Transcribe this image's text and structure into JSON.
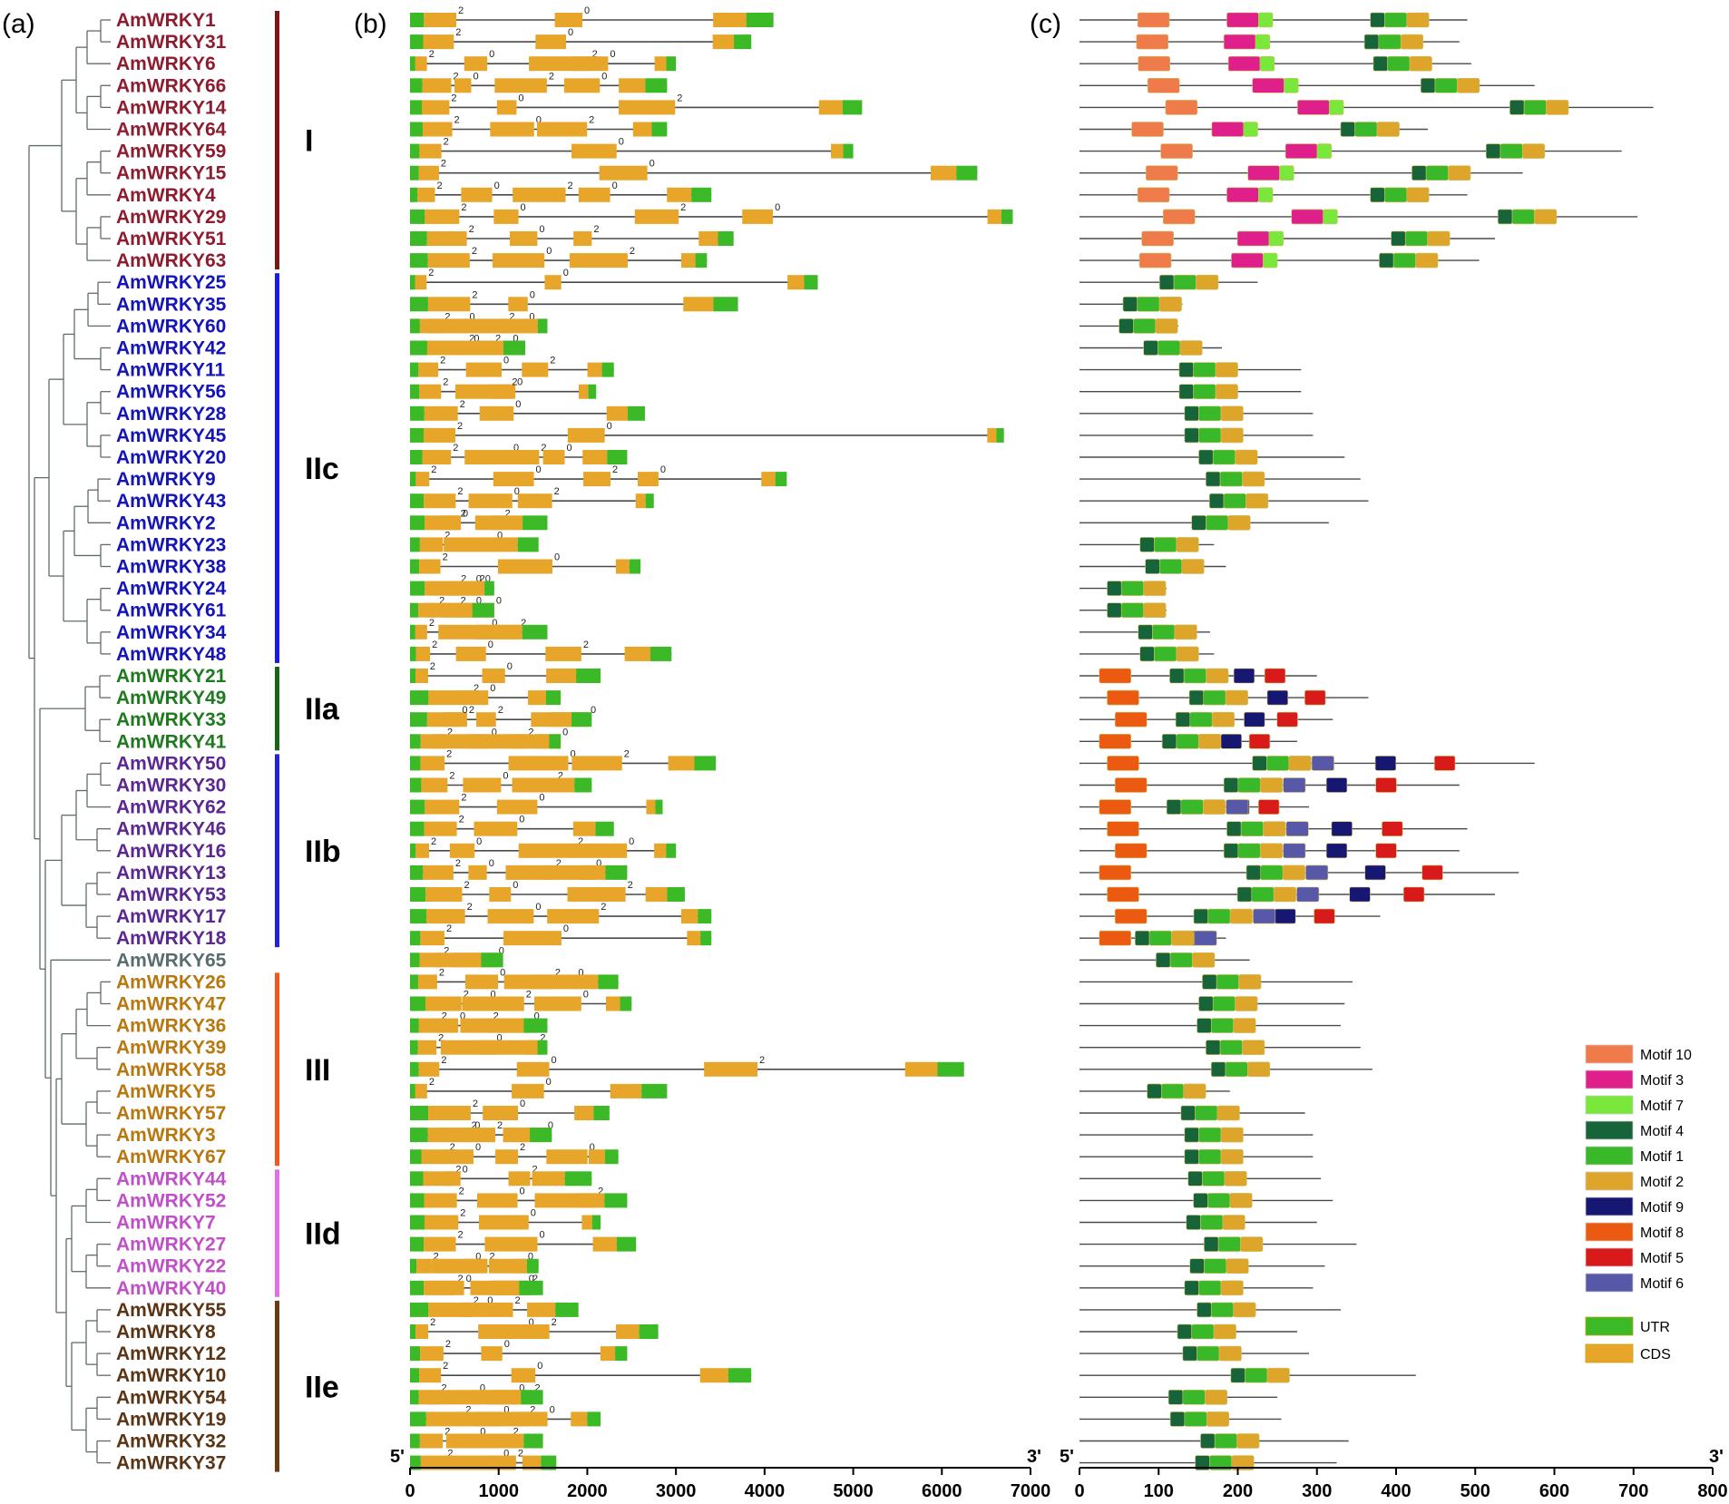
{
  "panel_labels": {
    "a": "(a)",
    "b": "(b)",
    "c": "(c)"
  },
  "colors": {
    "utr": "#3cb926",
    "cds": "#e7a62a",
    "intron": "#4a4a4a",
    "tree": "#5f6b6b",
    "I": "#8e1c30",
    "IIc": "#1414b8",
    "IIa": "#1f7a1f",
    "IIb": "#5a2890",
    "III": "#b8770f",
    "IId": "#c050c8",
    "IIe": "#5a3414",
    "ungrouped": "#5a6d6d",
    "bar_I": "#7a1818",
    "bar_IIc": "#1a1ae6",
    "bar_IIa": "#176617",
    "bar_IIb": "#2222dd",
    "bar_III": "#f2561d",
    "bar_IId": "#e070e6",
    "bar_IIe": "#6b3a14"
  },
  "groups": [
    {
      "label": "I",
      "color_key": "I",
      "bar_key": "bar_I",
      "first": 0,
      "last": 11
    },
    {
      "label": "IIc",
      "color_key": "IIc",
      "bar_key": "bar_IIc",
      "first": 12,
      "last": 29
    },
    {
      "label": "IIa",
      "color_key": "IIa",
      "bar_key": "bar_IIa",
      "first": 30,
      "last": 33
    },
    {
      "label": "IIb",
      "color_key": "IIb",
      "bar_key": "bar_IIb",
      "first": 34,
      "last": 42
    },
    {
      "label": "III",
      "color_key": "III",
      "bar_key": "bar_III",
      "first": 44,
      "last": 52
    },
    {
      "label": "IId",
      "color_key": "IId",
      "bar_key": "bar_IId",
      "first": 53,
      "last": 58
    },
    {
      "label": "IIe",
      "color_key": "IIe",
      "bar_key": "bar_IIe",
      "first": 59,
      "last": 66
    }
  ],
  "genes": [
    "AmWRKY1",
    "AmWRKY31",
    "AmWRKY6",
    "AmWRKY66",
    "AmWRKY14",
    "AmWRKY64",
    "AmWRKY59",
    "AmWRKY15",
    "AmWRKY4",
    "AmWRKY29",
    "AmWRKY51",
    "AmWRKY63",
    "AmWRKY25",
    "AmWRKY35",
    "AmWRKY60",
    "AmWRKY42",
    "AmWRKY11",
    "AmWRKY56",
    "AmWRKY28",
    "AmWRKY45",
    "AmWRKY20",
    "AmWRKY9",
    "AmWRKY43",
    "AmWRKY2",
    "AmWRKY23",
    "AmWRKY38",
    "AmWRKY24",
    "AmWRKY61",
    "AmWRKY34",
    "AmWRKY48",
    "AmWRKY21",
    "AmWRKY49",
    "AmWRKY33",
    "AmWRKY41",
    "AmWRKY50",
    "AmWRKY30",
    "AmWRKY62",
    "AmWRKY46",
    "AmWRKY16",
    "AmWRKY13",
    "AmWRKY53",
    "AmWRKY17",
    "AmWRKY18",
    "AmWRKY65",
    "AmWRKY26",
    "AmWRKY47",
    "AmWRKY36",
    "AmWRKY39",
    "AmWRKY58",
    "AmWRKY5",
    "AmWRKY57",
    "AmWRKY3",
    "AmWRKY67",
    "AmWRKY44",
    "AmWRKY52",
    "AmWRKY7",
    "AmWRKY27",
    "AmWRKY22",
    "AmWRKY40",
    "AmWRKY55",
    "AmWRKY8",
    "AmWRKY12",
    "AmWRKY10",
    "AmWRKY54",
    "AmWRKY19",
    "AmWRKY32",
    "AmWRKY37"
  ],
  "gene_group": [
    "I",
    "I",
    "I",
    "I",
    "I",
    "I",
    "I",
    "I",
    "I",
    "I",
    "I",
    "I",
    "IIc",
    "IIc",
    "IIc",
    "IIc",
    "IIc",
    "IIc",
    "IIc",
    "IIc",
    "IIc",
    "IIc",
    "IIc",
    "IIc",
    "IIc",
    "IIc",
    "IIc",
    "IIc",
    "IIc",
    "IIc",
    "IIa",
    "IIa",
    "IIa",
    "IIa",
    "IIb",
    "IIb",
    "IIb",
    "IIb",
    "IIb",
    "IIb",
    "IIb",
    "IIb",
    "IIb",
    "ungrouped",
    "III",
    "III",
    "III",
    "III",
    "III",
    "III",
    "III",
    "III",
    "III",
    "IId",
    "IId",
    "IId",
    "IId",
    "IId",
    "IId",
    "IIe",
    "IIe",
    "IIe",
    "IIe",
    "IIe",
    "IIe",
    "IIe",
    "IIe"
  ],
  "chart_data": {
    "type": "gene-structure-diagram",
    "gene_length_axis": {
      "min": 0,
      "max": 7000,
      "ticks": [
        0,
        1000,
        2000,
        3000,
        4000,
        5000,
        6000,
        7000
      ],
      "start_label": "5'",
      "end_label": "3'"
    },
    "motif_axis": {
      "min": 0,
      "max": 800,
      "ticks": [
        0,
        100,
        200,
        300,
        400,
        500,
        600,
        700,
        800
      ],
      "start_label": "5'",
      "end_label": "3'"
    },
    "gene_lengths": [
      4100,
      3850,
      3000,
      2900,
      5100,
      2900,
      5000,
      6400,
      3400,
      6800,
      3650,
      3350,
      4600,
      3700,
      1550,
      1300,
      2300,
      2100,
      2650,
      6700,
      2450,
      4250,
      2750,
      1550,
      1450,
      2600,
      950,
      950,
      1550,
      2950,
      2150,
      1700,
      2050,
      1700,
      3450,
      2050,
      2850,
      2300,
      3000,
      2450,
      3100,
      3400,
      3400,
      1050,
      2350,
      2500,
      1550,
      1550,
      6250,
      2900,
      2250,
      1600,
      2350,
      2050,
      2450,
      2150,
      2550,
      1450,
      1500,
      1900,
      2800,
      2450,
      3850,
      1500,
      2150,
      1500,
      1650
    ],
    "protein_lengths": [
      490,
      480,
      495,
      575,
      725,
      440,
      685,
      560,
      490,
      705,
      525,
      505,
      225,
      130,
      125,
      180,
      280,
      280,
      295,
      295,
      335,
      355,
      365,
      315,
      170,
      185,
      110,
      110,
      165,
      170,
      300,
      365,
      320,
      275,
      575,
      480,
      290,
      490,
      480,
      555,
      525,
      380,
      185,
      215,
      345,
      335,
      330,
      355,
      370,
      190,
      285,
      295,
      295,
      305,
      320,
      300,
      350,
      310,
      295,
      330,
      275,
      290,
      425,
      250,
      255,
      340,
      325
    ],
    "legend": {
      "motifs": [
        {
          "name": "Motif 10",
          "color": "#ef7a4a"
        },
        {
          "name": "Motif 3",
          "color": "#e0208a"
        },
        {
          "name": "Motif 7",
          "color": "#7ae83a"
        },
        {
          "name": "Motif 4",
          "color": "#17643a"
        },
        {
          "name": "Motif 1",
          "color": "#39b82a"
        },
        {
          "name": "Motif 2",
          "color": "#dda62a"
        },
        {
          "name": "Motif 9",
          "color": "#161673"
        },
        {
          "name": "Motif 8",
          "color": "#ec5a12"
        },
        {
          "name": "Motif 5",
          "color": "#d81a1a"
        },
        {
          "name": "Motif 6",
          "color": "#5858a8"
        }
      ],
      "structure": [
        {
          "name": "UTR",
          "color": "#3cb926"
        },
        {
          "name": "CDS",
          "color": "#e7a62a"
        }
      ]
    }
  }
}
